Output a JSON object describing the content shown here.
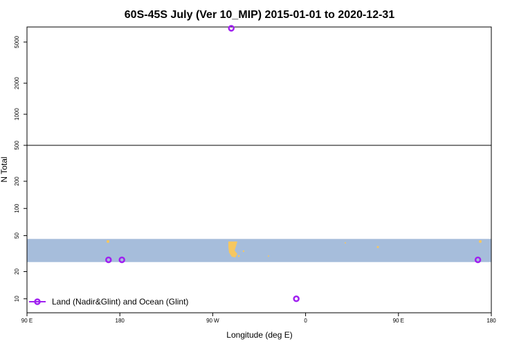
{
  "chart_data": {
    "type": "scatter",
    "title": "60S-45S July (Ver 10_MIP)   2015-01-01 to 2020-12-31",
    "xlabel": "Longitude (deg E)",
    "ylabel": "N Total",
    "xlim": [
      90,
      540
    ],
    "x_ticks": [
      {
        "value": 90,
        "label": "90 E"
      },
      {
        "value": 180,
        "label": "180"
      },
      {
        "value": 270,
        "label": "90 W"
      },
      {
        "value": 360,
        "label": "0"
      },
      {
        "value": 450,
        "label": "90 E"
      },
      {
        "value": 540,
        "label": "180"
      }
    ],
    "y_scale": "log",
    "y_break": 500,
    "y_lower_range": [
      7,
      500
    ],
    "y_upper_range": [
      500,
      7000
    ],
    "y_ticks_lower": [
      {
        "value": 10,
        "label": "10"
      },
      {
        "value": 20,
        "label": "20"
      },
      {
        "value": 50,
        "label": "50"
      },
      {
        "value": 100,
        "label": "100"
      },
      {
        "value": 200,
        "label": "200"
      },
      {
        "value": 500,
        "label": "500"
      }
    ],
    "y_ticks_upper": [
      {
        "value": 1000,
        "label": "1000"
      },
      {
        "value": 2000,
        "label": "2000"
      },
      {
        "value": 5000,
        "label": "5000"
      }
    ],
    "series": [
      {
        "name": "Land (Nadir&Glint) and Ocean (Glint)",
        "color": "#a020f0",
        "marker": "open-circle",
        "points": [
          {
            "x": 169,
            "y": 27
          },
          {
            "x": 182,
            "y": 27
          },
          {
            "x": 288,
            "y": 6800
          },
          {
            "x": 351,
            "y": 10
          },
          {
            "x": 527,
            "y": 27
          }
        ]
      }
    ],
    "latitude_band_background": {
      "color": "#a6bddb",
      "land_color": "#f6c760",
      "y_range": [
        25.5,
        46
      ]
    },
    "legend": "bottom-left",
    "grid": false
  }
}
